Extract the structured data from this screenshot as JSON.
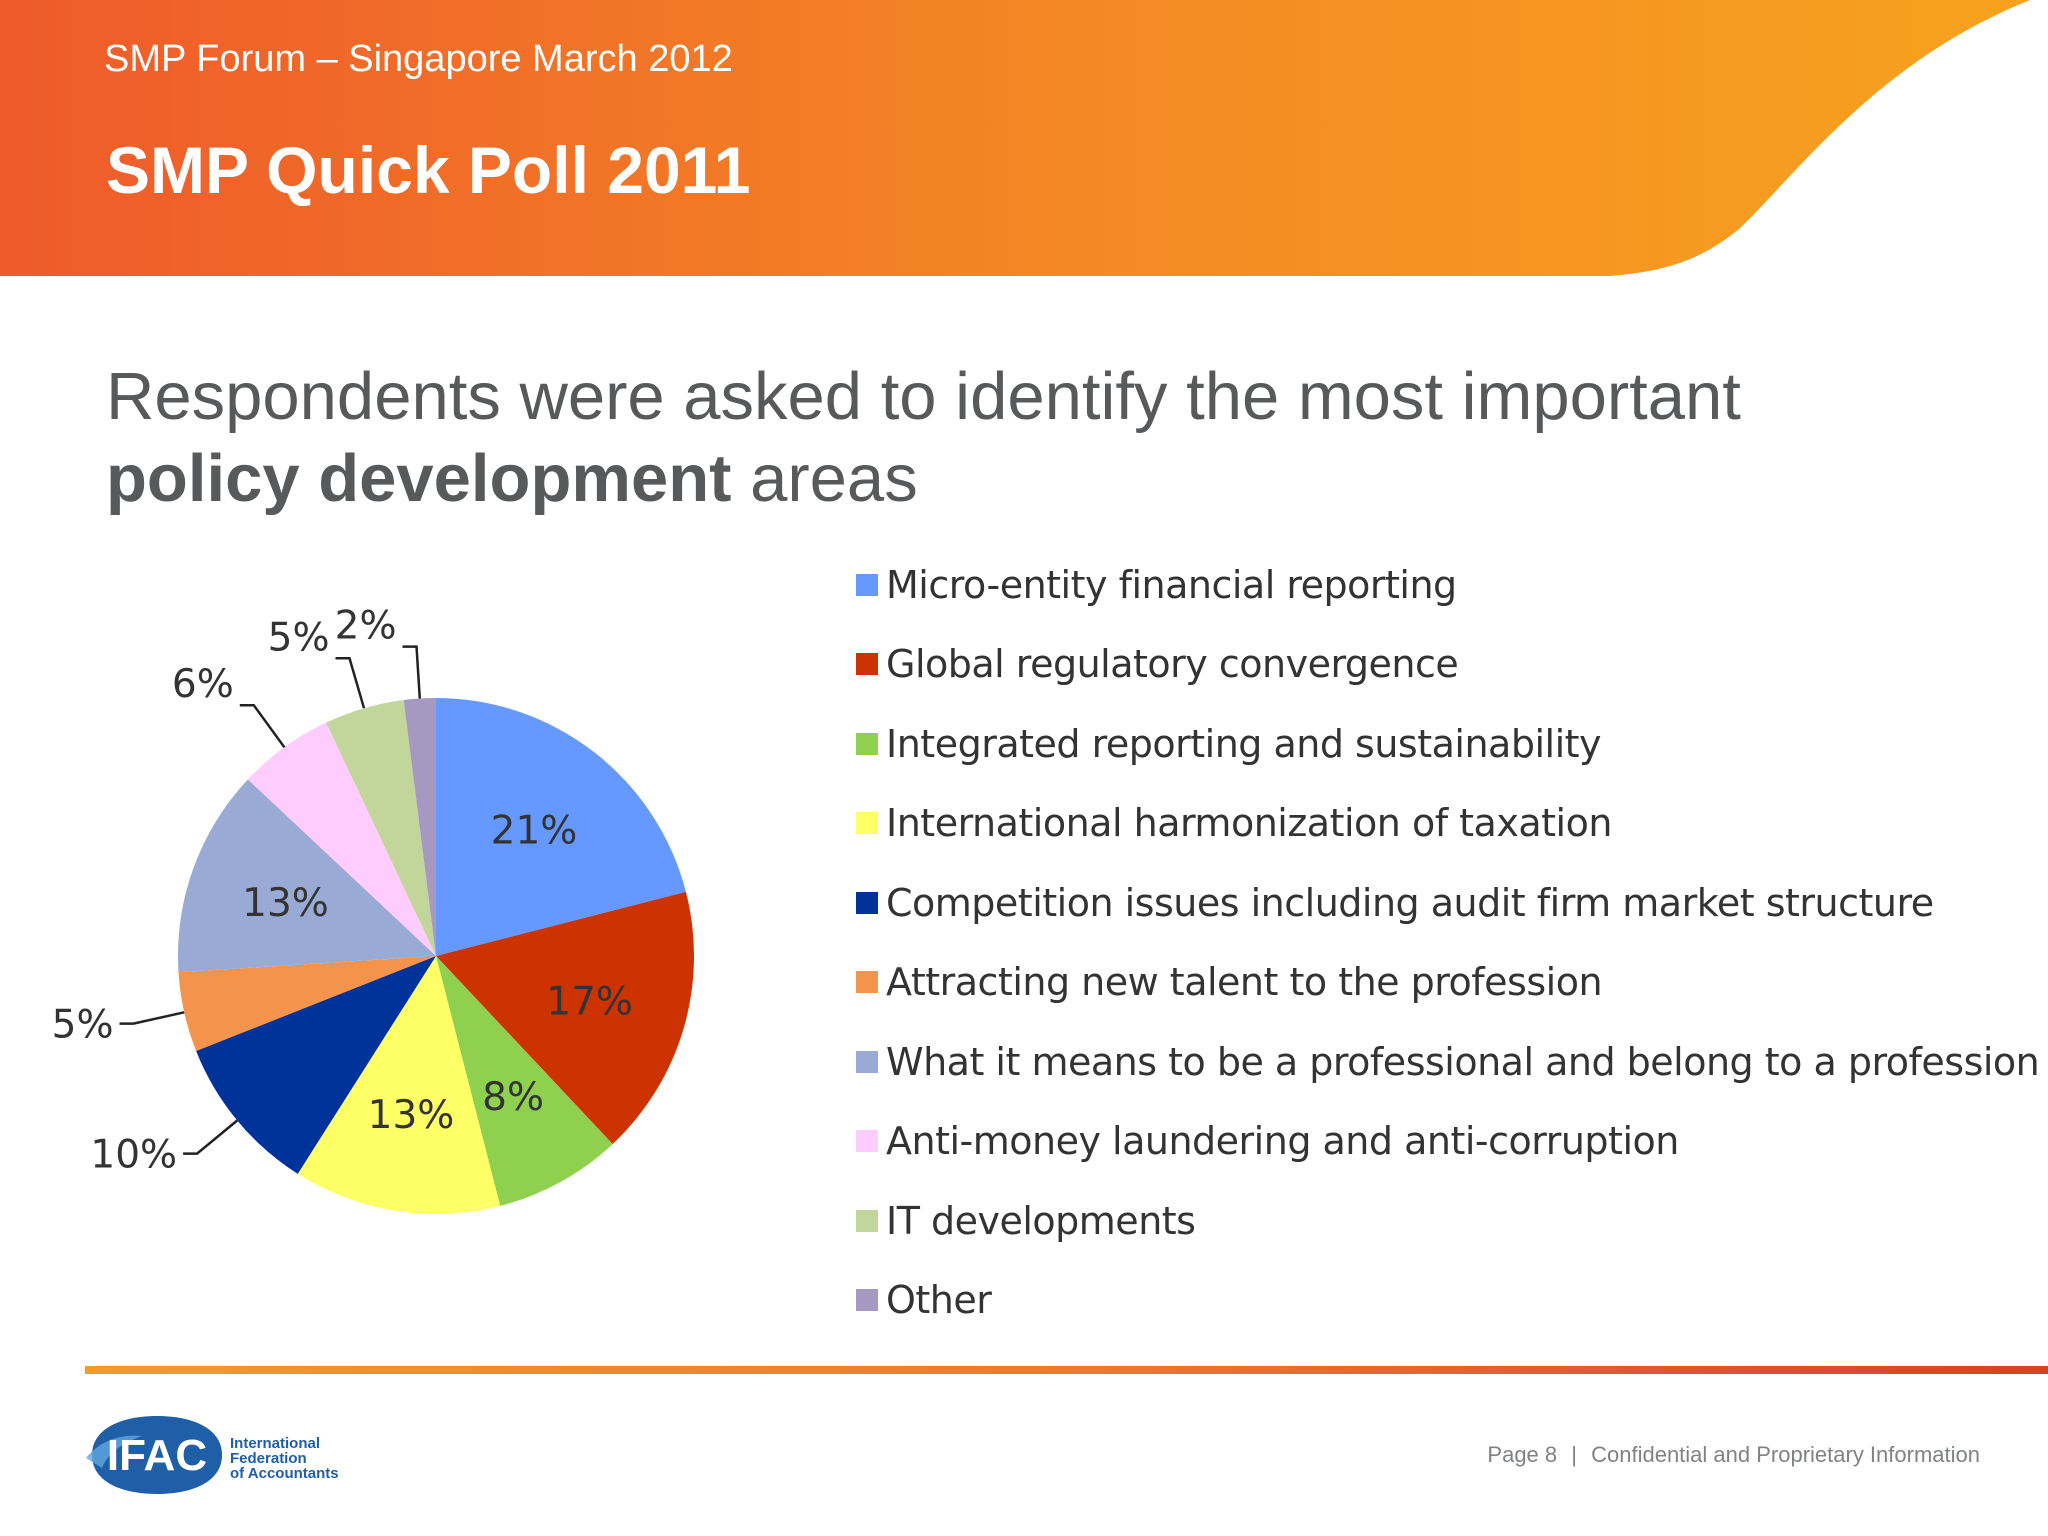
{
  "header": {
    "event": "SMP Forum – Singapore March 2012",
    "title": "SMP Quick Poll 2011",
    "colors": {
      "start": "#ef5a2b",
      "end": "#f7a21e"
    }
  },
  "question": {
    "line1": "Respondents were asked to identify the most important",
    "bold": "policy development",
    "rest": " areas"
  },
  "chart_data": {
    "type": "pie",
    "title": "",
    "start_angle_deg": 0,
    "direction": "clockwise",
    "slices": [
      {
        "label": "Micro-entity financial reporting",
        "value": 21,
        "display": "21%",
        "color": "#6699ff",
        "label_mode": "inside"
      },
      {
        "label": "Global regulatory convergence",
        "value": 17,
        "display": "17%",
        "color": "#cc3300",
        "label_mode": "inside"
      },
      {
        "label": "Integrated reporting and sustainability",
        "value": 8,
        "display": "8%",
        "color": "#8fd14f",
        "label_mode": "inside"
      },
      {
        "label": "International harmonization of taxation",
        "value": 13,
        "display": "13%",
        "color": "#ffff66",
        "label_mode": "inside"
      },
      {
        "label": "Competition issues including audit firm market structure",
        "value": 10,
        "display": "10%",
        "color": "#003399",
        "label_mode": "outside"
      },
      {
        "label": "Attracting new talent to the profession",
        "value": 5,
        "display": "5%",
        "color": "#f4944c",
        "label_mode": "outside"
      },
      {
        "label": "What it means to be a professional and belong to a profession",
        "value": 13,
        "display": "13%",
        "color": "#99aad4",
        "label_mode": "inside"
      },
      {
        "label": "Anti-money laundering and anti-corruption",
        "value": 6,
        "display": "6%",
        "color": "#ffccff",
        "label_mode": "outside"
      },
      {
        "label": "IT developments",
        "value": 5,
        "display": "5%",
        "color": "#c2d69b",
        "label_mode": "outside"
      },
      {
        "label": "Other",
        "value": 2,
        "display": "2%",
        "color": "#a599c2",
        "label_mode": "outside"
      }
    ],
    "legend_position": "right"
  },
  "footer": {
    "page": "Page 8",
    "separator": "|",
    "notice": "Confidential and Proprietary Information",
    "logo": {
      "mark": "IFAC",
      "name_lines": [
        "International",
        "Federation",
        "of Accountants"
      ],
      "color": "#1f5fa8"
    }
  }
}
